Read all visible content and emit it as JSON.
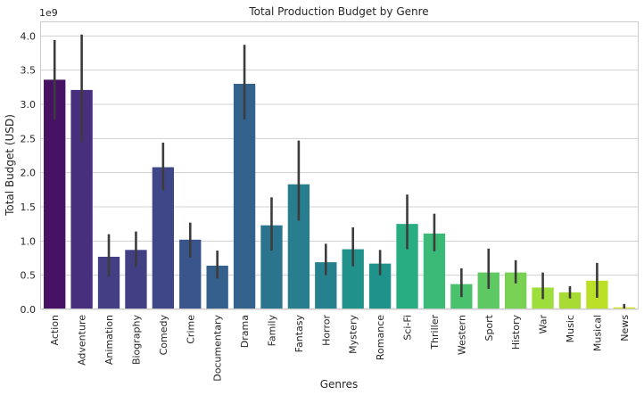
{
  "chart_data": {
    "type": "bar",
    "title": "Total Production Budget by Genre",
    "xlabel": "Genres",
    "ylabel": "Total Budget (USD)",
    "y_offset_label": "1e9",
    "ylim": [
      0,
      4.2
    ],
    "yticks": [
      "0.0",
      "0.5",
      "1.0",
      "1.5",
      "2.0",
      "2.5",
      "3.0",
      "3.5",
      "4.0"
    ],
    "grid": true,
    "categories": [
      "Action",
      "Adventure",
      "Animation",
      "Biography",
      "Comedy",
      "Crime",
      "Documentary",
      "Drama",
      "Family",
      "Fantasy",
      "Horror",
      "Mystery",
      "Romance",
      "Sci-Fi",
      "Thriller",
      "Western",
      "Sport",
      "History",
      "War",
      "Music",
      "Musical",
      "News"
    ],
    "values": [
      3.36,
      3.21,
      0.77,
      0.87,
      2.08,
      1.02,
      0.64,
      3.3,
      1.23,
      1.83,
      0.69,
      0.88,
      0.67,
      1.25,
      1.11,
      0.37,
      0.54,
      0.54,
      0.32,
      0.25,
      0.42,
      0.03
    ],
    "error_low": [
      2.78,
      2.45,
      0.48,
      0.62,
      1.74,
      0.76,
      0.45,
      2.78,
      0.86,
      1.3,
      0.5,
      0.63,
      0.5,
      0.88,
      0.85,
      0.18,
      0.3,
      0.38,
      0.15,
      0.16,
      0.17,
      0.0
    ],
    "error_high": [
      3.94,
      4.02,
      1.1,
      1.14,
      2.44,
      1.27,
      0.86,
      3.87,
      1.64,
      2.47,
      0.96,
      1.2,
      0.87,
      1.68,
      1.4,
      0.6,
      0.89,
      0.72,
      0.54,
      0.34,
      0.68,
      0.08
    ],
    "colors": [
      "#471164",
      "#472f7d",
      "#443e85",
      "#423f85",
      "#3f4788",
      "#3a548c",
      "#355f8d",
      "#33638d",
      "#2b748e",
      "#287d8e",
      "#26818e",
      "#21918c",
      "#20928c",
      "#27ad81",
      "#3aba76",
      "#4ac16d",
      "#5ec962",
      "#78d152",
      "#9ddd3c",
      "#a8db34",
      "#bcdf27",
      "#d8e219"
    ]
  }
}
